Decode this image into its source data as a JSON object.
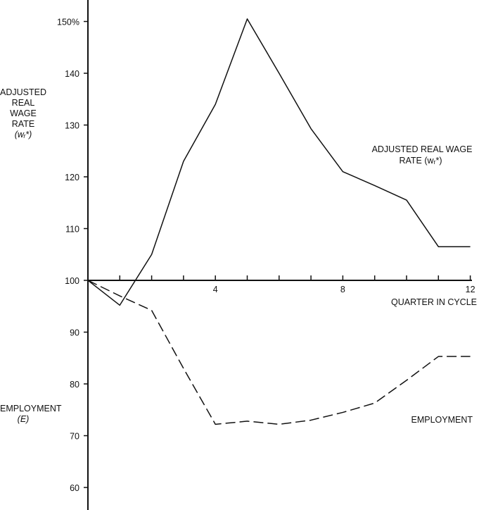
{
  "chart_data": {
    "type": "line",
    "xlabel": "QUARTER IN CYCLE",
    "ylabel_wage": {
      "lines": [
        "ADJUSTED",
        "REAL",
        "WAGE",
        "RATE"
      ],
      "symbol": "(wᵣ*)"
    },
    "ylabel_employment": {
      "lines": [
        "EMPLOYMENT"
      ],
      "symbol": "(E)"
    },
    "x_ticks": [
      4,
      8,
      12
    ],
    "y_ticks": [
      {
        "value": 150,
        "label": "150%"
      },
      {
        "value": 140,
        "label": "140"
      },
      {
        "value": 130,
        "label": "130"
      },
      {
        "value": 120,
        "label": "120"
      },
      {
        "value": 110,
        "label": "110"
      },
      {
        "value": 100,
        "label": "100"
      },
      {
        "value": 90,
        "label": "90"
      },
      {
        "value": 80,
        "label": "80"
      },
      {
        "value": 70,
        "label": "70"
      },
      {
        "value": 60,
        "label": "60"
      }
    ],
    "xlim": [
      0,
      12
    ],
    "ylim": [
      58,
      153
    ],
    "series": [
      {
        "name": "ADJUSTED REAL WAGE RATE (wᵣ*)",
        "line_style": "solid",
        "x": [
          0,
          1,
          2,
          3,
          4,
          5,
          6,
          7,
          8,
          9,
          10,
          11,
          12
        ],
        "y": [
          100,
          95.2,
          105,
          123,
          134,
          150.5,
          140,
          129.3,
          121,
          118.3,
          115.5,
          106.5,
          106.5
        ]
      },
      {
        "name": "EMPLOYMENT",
        "line_style": "dashed",
        "x": [
          0,
          1,
          2,
          3,
          4,
          5,
          6,
          7,
          8,
          9,
          10,
          11,
          12
        ],
        "y": [
          100,
          97,
          94.2,
          83,
          72.2,
          72.8,
          72.2,
          73,
          74.5,
          76.3,
          80.7,
          85.3,
          85.3
        ]
      }
    ],
    "annotations": [
      {
        "target": "wage",
        "lines": [
          "ADJUSTED REAL WAGE",
          "RATE (wᵣ*)"
        ]
      },
      {
        "target": "employment",
        "lines": [
          "EMPLOYMENT"
        ]
      }
    ]
  }
}
